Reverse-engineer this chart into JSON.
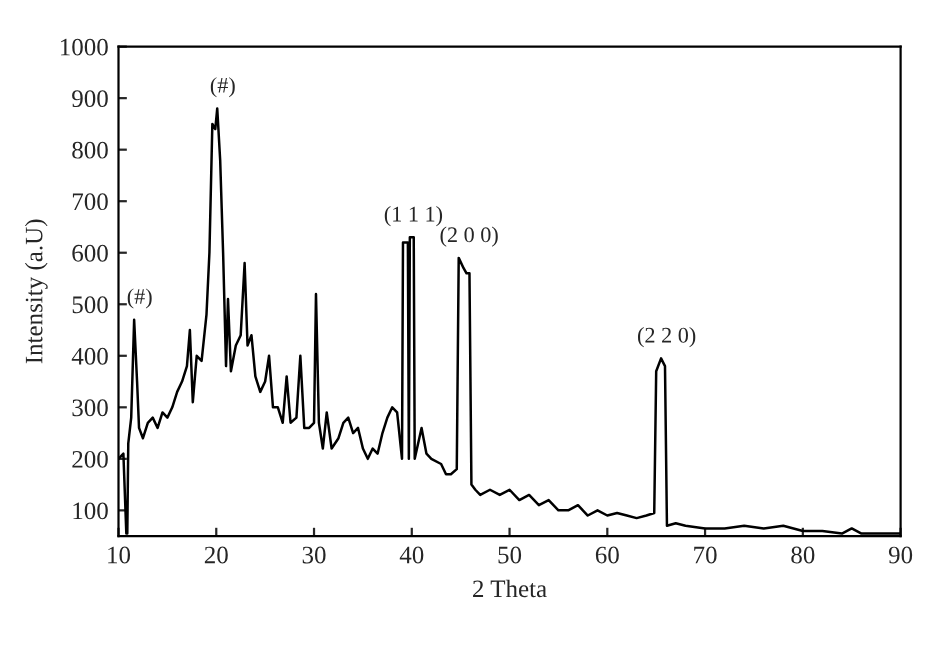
{
  "chart_data": {
    "type": "line",
    "xlabel": "2 Theta",
    "ylabel": "Intensity (a.U)",
    "x": [
      10,
      10.5,
      10.8,
      10.9,
      11.0,
      11.3,
      11.6,
      11.9,
      12.1,
      12.5,
      13,
      13.5,
      14,
      14.5,
      15,
      15.5,
      16,
      16.5,
      17,
      17.3,
      17.6,
      18,
      18.5,
      19,
      19.3,
      19.6,
      19.9,
      20.1,
      20.4,
      20.7,
      21,
      21.2,
      21.5,
      22,
      22.5,
      22.9,
      23.2,
      23.6,
      24,
      24.5,
      25,
      25.4,
      25.8,
      26.3,
      26.8,
      27.2,
      27.6,
      28.2,
      28.6,
      29,
      29.5,
      30,
      30.2,
      30.5,
      30.9,
      31.3,
      31.8,
      32.5,
      33,
      33.5,
      34,
      34.5,
      35,
      35.5,
      36,
      36.5,
      37,
      37.5,
      38,
      38.5,
      39,
      39.1,
      39.6,
      39.7,
      39.8,
      40.2,
      40.3,
      41,
      41.5,
      42,
      43,
      43.5,
      44,
      44.6,
      44.8,
      45.3,
      45.6,
      45.9,
      46.1,
      46.5,
      47,
      48,
      49,
      50,
      51,
      52,
      53,
      54,
      55,
      56,
      57,
      58,
      59,
      60,
      61,
      62,
      63,
      64,
      64.8,
      65,
      65.5,
      65.9,
      66.1,
      67,
      68,
      70,
      72,
      74,
      76,
      78,
      80,
      82,
      84,
      85,
      86,
      88,
      90
    ],
    "series": [
      {
        "color": "#000000",
        "values": [
          200,
          210,
          55,
          55,
          230,
          280,
          470,
          350,
          260,
          240,
          270,
          280,
          260,
          290,
          280,
          300,
          330,
          350,
          380,
          450,
          310,
          400,
          390,
          480,
          600,
          850,
          840,
          880,
          780,
          600,
          380,
          510,
          370,
          420,
          440,
          580,
          420,
          440,
          360,
          330,
          350,
          400,
          300,
          300,
          270,
          360,
          270,
          280,
          400,
          260,
          260,
          270,
          520,
          270,
          220,
          290,
          220,
          240,
          270,
          280,
          250,
          260,
          220,
          200,
          220,
          210,
          250,
          280,
          300,
          290,
          200,
          620,
          620,
          200,
          630,
          630,
          200,
          260,
          210,
          200,
          190,
          170,
          170,
          180,
          590,
          570,
          560,
          560,
          150,
          140,
          130,
          140,
          130,
          140,
          120,
          130,
          110,
          120,
          100,
          100,
          110,
          90,
          100,
          90,
          95,
          90,
          85,
          90,
          95,
          370,
          395,
          380,
          70,
          75,
          70,
          65,
          65,
          70,
          65,
          70,
          60,
          60,
          55,
          65,
          55,
          55,
          55
        ]
      }
    ],
    "xlim": [
      10,
      90
    ],
    "xticks": [
      10,
      20,
      30,
      40,
      50,
      60,
      70,
      80,
      90
    ],
    "ylim": [
      50,
      1000
    ],
    "yticks": [
      100,
      200,
      300,
      400,
      500,
      600,
      700,
      800,
      900,
      1000
    ],
    "annotations": [
      {
        "text": "(#)",
        "x": 11.6,
        "y": 470
      },
      {
        "text": "(#)",
        "x": 20.1,
        "y": 880
      },
      {
        "text": "(1 1 1)",
        "x": 39.6,
        "y": 630
      },
      {
        "text": "(2 0 0)",
        "x": 45.3,
        "y": 590
      },
      {
        "text": "(2 2 0)",
        "x": 65.5,
        "y": 395
      }
    ],
    "grid": false,
    "legend": false
  }
}
